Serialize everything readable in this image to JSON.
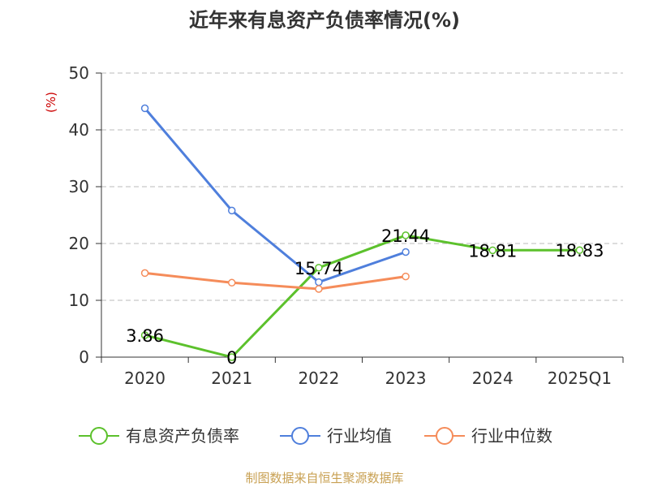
{
  "chart_data": {
    "type": "line",
    "title": "近年来有息资产负债率情况(%)",
    "ylabel": "(%)",
    "ylim": [
      0,
      50
    ],
    "yticks": [
      0,
      10,
      20,
      30,
      40,
      50
    ],
    "categories": [
      "2020",
      "2021",
      "2022",
      "2023",
      "2024",
      "2025Q1"
    ],
    "grid": true,
    "legend_position": "bottom",
    "series": [
      {
        "name": "有息资产负债率",
        "color": "#5cc12c",
        "values": [
          3.86,
          0,
          15.74,
          21.44,
          18.81,
          18.83
        ],
        "labels": [
          "3.86",
          "0",
          "15.74",
          "21.44",
          "18.81",
          "18.83"
        ]
      },
      {
        "name": "行业均值",
        "color": "#4f7fdc",
        "values": [
          43.8,
          25.8,
          13.2,
          18.5,
          null,
          null
        ]
      },
      {
        "name": "行业中位数",
        "color": "#f58c5a",
        "values": [
          14.8,
          13.1,
          12.0,
          14.2,
          null,
          null
        ]
      }
    ],
    "source": "制图数据来自恒生聚源数据库"
  }
}
